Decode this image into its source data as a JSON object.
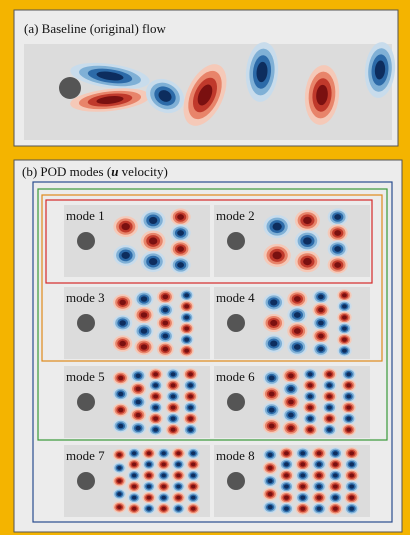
{
  "panel_a": {
    "title": "(a) Baseline (original) flow"
  },
  "panel_b": {
    "title_parts": [
      "(b) POD modes (",
      "u",
      " velocity)"
    ],
    "modes": [
      "mode 1",
      "mode 2",
      "mode 3",
      "mode 4",
      "mode 5",
      "mode 6",
      "mode 7",
      "mode 8"
    ]
  }
}
